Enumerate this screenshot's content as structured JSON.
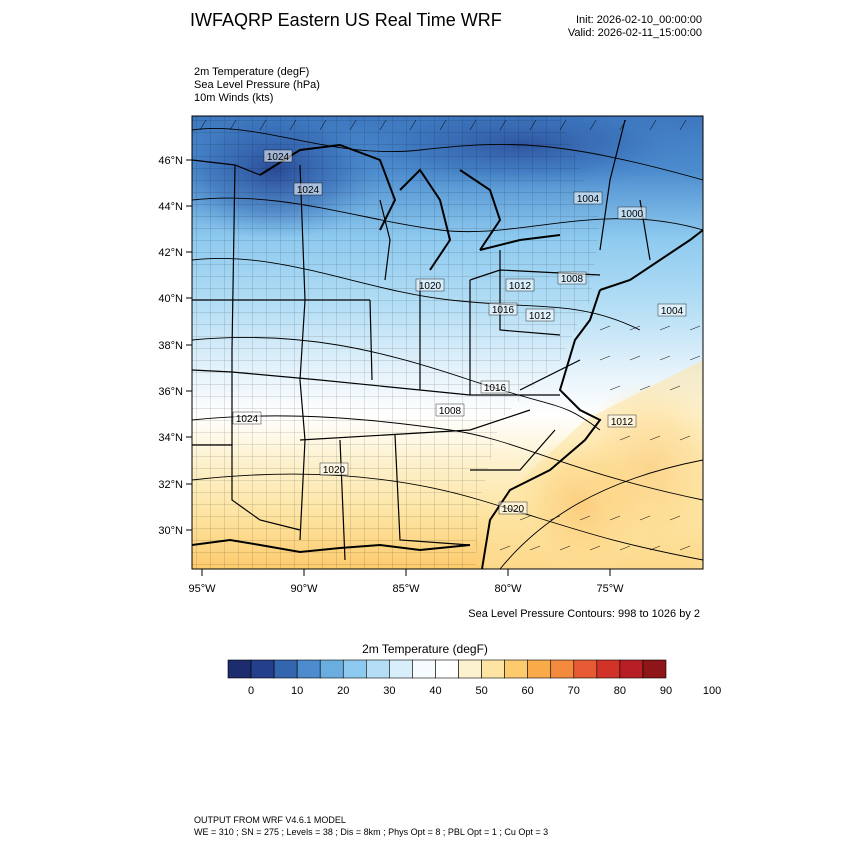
{
  "header": {
    "title": "IWFAQRP Eastern US Real Time WRF",
    "init": "Init: 2026-02-10_00:00:00",
    "valid": "Valid: 2026-02-11_15:00:00"
  },
  "fields": [
    "2m Temperature   (degF)",
    "Sea Level Pressure   (hPa)",
    "10m Winds   (kts)"
  ],
  "map": {
    "lat_labels": [
      "46°N",
      "44°N",
      "42°N",
      "40°N",
      "38°N",
      "36°N",
      "34°N",
      "32°N",
      "30°N"
    ],
    "lon_labels": [
      "95°W",
      "90°W",
      "85°W",
      "80°W",
      "75°W"
    ],
    "pressure_labels": [
      "1024",
      "1024",
      "1004",
      "1000",
      "1020",
      "1012",
      "1008",
      "1016",
      "1012",
      "1004",
      "1016",
      "1024",
      "1008",
      "1012",
      "1020",
      "1020"
    ]
  },
  "contour_note": "Sea Level Pressure Contours: 998 to 1026 by 2",
  "colorbar": {
    "title": "2m Temperature  (degF)",
    "colors": [
      "#1c2c6c",
      "#243f8c",
      "#3466b0",
      "#4c8cce",
      "#6aaee0",
      "#8ecaef",
      "#b4def5",
      "#d8eefa",
      "#f6fbfe",
      "#ffffff",
      "#fdf2cf",
      "#fde4a2",
      "#fdcb6e",
      "#f9ab4a",
      "#f38a3e",
      "#e75a34",
      "#d23328",
      "#b71e25",
      "#8e1518"
    ],
    "tick_labels": [
      "0",
      "10",
      "20",
      "30",
      "40",
      "50",
      "60",
      "70",
      "80",
      "90",
      "100"
    ]
  },
  "footer": {
    "line1": "OUTPUT FROM WRF V4.6.1 MODEL",
    "line2": "WE = 310 ; SN = 275 ; Levels = 38 ; Dis = 8km ; Phys Opt = 8 ; PBL Opt = 1 ; Cu Opt = 3"
  }
}
